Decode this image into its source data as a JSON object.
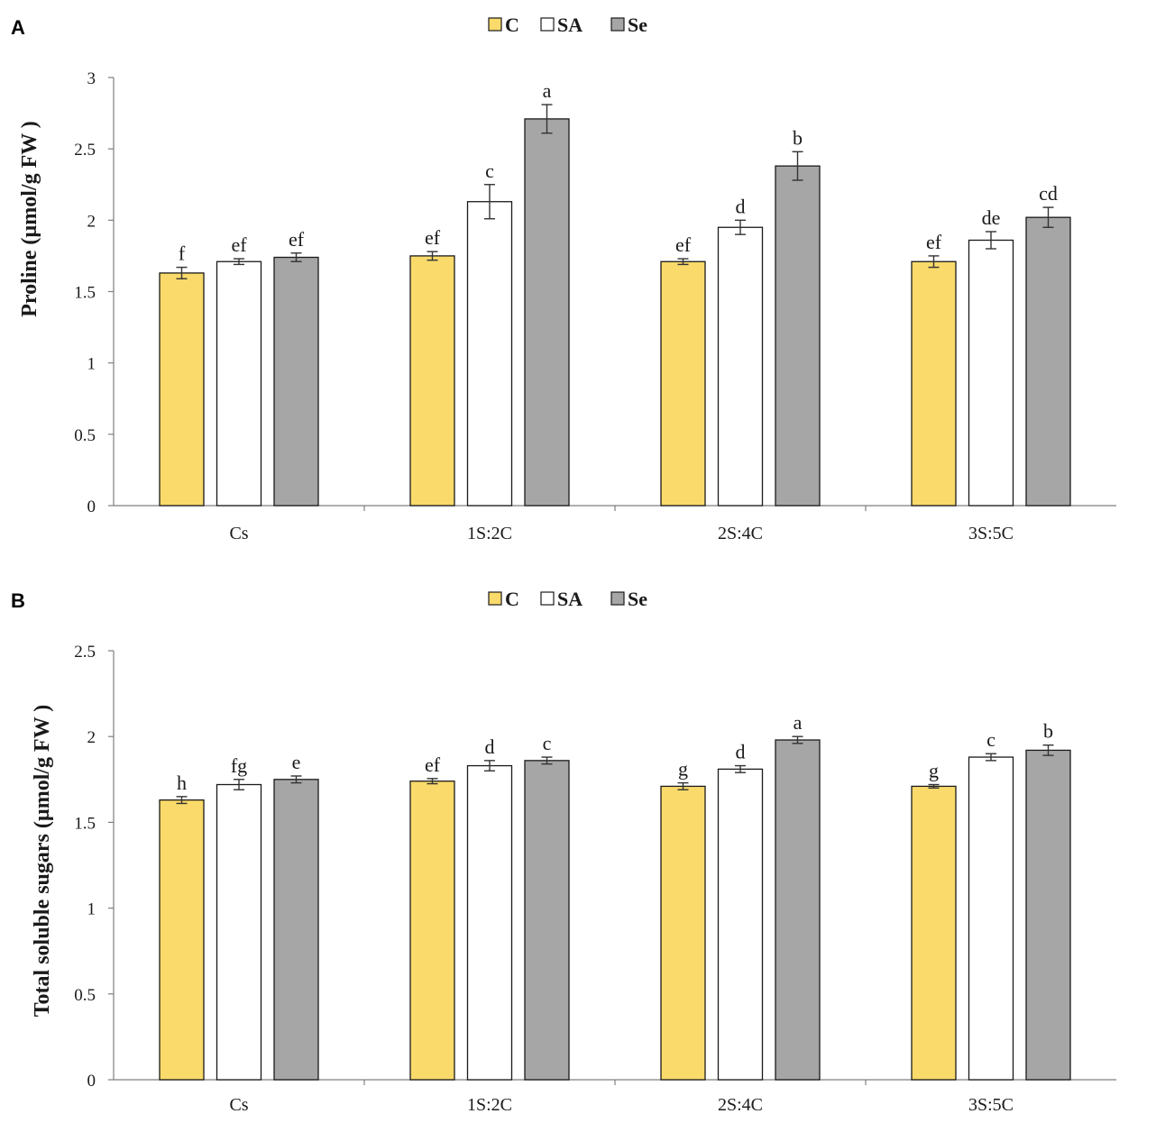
{
  "colors": {
    "C": "#f9da6b",
    "SA": "#ffffff",
    "Se": "#a6a6a6",
    "axis": "#7f7f7f",
    "outline": "#1a1a1a"
  },
  "chart_data": [
    {
      "panel": "A",
      "type": "bar",
      "ylabel": "Proline (µmol/g FW )",
      "ylim": [
        0,
        3
      ],
      "yticks": [
        0,
        0.5,
        1,
        1.5,
        2,
        2.5,
        3
      ],
      "ytick_labels": [
        "0",
        "0.5",
        "1",
        "1.5",
        "2",
        "2.5",
        "3"
      ],
      "categories": [
        "Cs",
        "1S:2C",
        "2S:4C",
        "3S:5C"
      ],
      "legend": [
        "C",
        "SA",
        "Se"
      ],
      "legend_position": "top-center",
      "series": [
        {
          "name": "C",
          "values": [
            1.63,
            1.75,
            1.71,
            1.71
          ],
          "errors": [
            0.04,
            0.03,
            0.02,
            0.04
          ],
          "letters": [
            "f",
            "ef",
            "ef",
            "ef"
          ]
        },
        {
          "name": "SA",
          "values": [
            1.71,
            2.13,
            1.95,
            1.86
          ],
          "errors": [
            0.02,
            0.12,
            0.05,
            0.06
          ],
          "letters": [
            "ef",
            "c",
            "d",
            "de"
          ]
        },
        {
          "name": "Se",
          "values": [
            1.74,
            2.71,
            2.38,
            2.02
          ],
          "errors": [
            0.03,
            0.1,
            0.1,
            0.07
          ],
          "letters": [
            "ef",
            "a",
            "b",
            "cd"
          ]
        }
      ]
    },
    {
      "panel": "B",
      "type": "bar",
      "ylabel": "Total soluble sugars (µmol/g FW )",
      "ylim": [
        0,
        2.5
      ],
      "yticks": [
        0,
        0.5,
        1,
        1.5,
        2,
        2.5
      ],
      "ytick_labels": [
        "0",
        "0.5",
        "1",
        "1.5",
        "2",
        "2.5"
      ],
      "categories": [
        "Cs",
        "1S:2C",
        "2S:4C",
        "3S:5C"
      ],
      "legend": [
        "C",
        "SA",
        "Se"
      ],
      "legend_position": "top-center",
      "series": [
        {
          "name": "C",
          "values": [
            1.63,
            1.74,
            1.71,
            1.71
          ],
          "errors": [
            0.02,
            0.015,
            0.02,
            0.01
          ],
          "letters": [
            "h",
            "ef",
            "g",
            "g"
          ]
        },
        {
          "name": "SA",
          "values": [
            1.72,
            1.83,
            1.81,
            1.88
          ],
          "errors": [
            0.03,
            0.03,
            0.02,
            0.02
          ],
          "letters": [
            "fg",
            "d",
            "d",
            "c"
          ]
        },
        {
          "name": "Se",
          "values": [
            1.75,
            1.86,
            1.98,
            1.92
          ],
          "errors": [
            0.02,
            0.02,
            0.02,
            0.03
          ],
          "letters": [
            "e",
            "c",
            "a",
            "b"
          ]
        }
      ]
    }
  ]
}
